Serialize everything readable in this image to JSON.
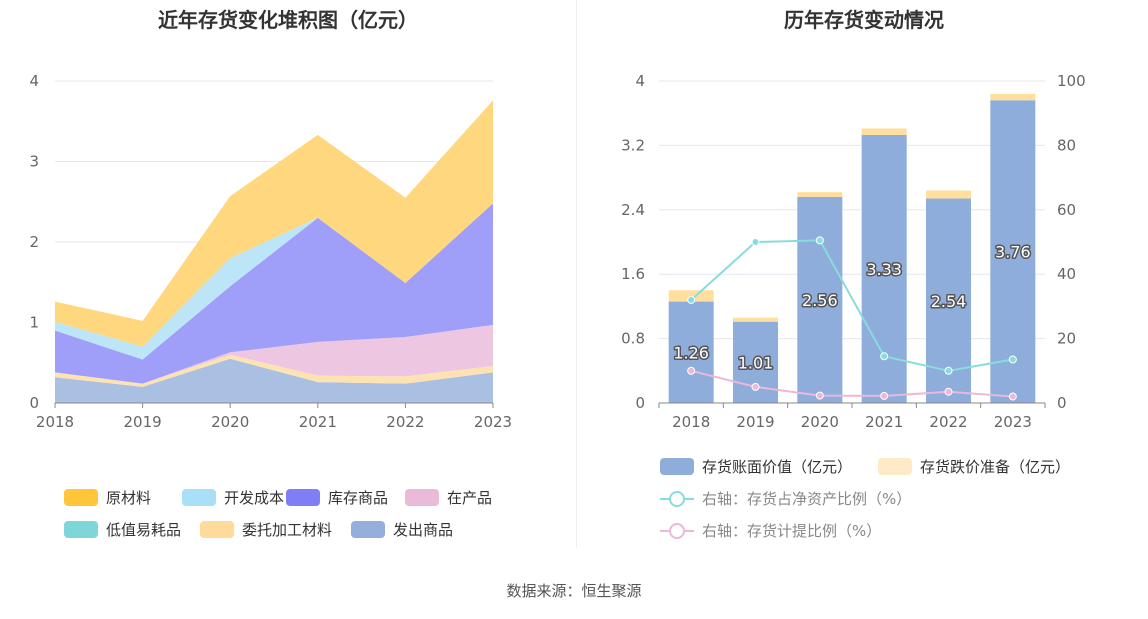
{
  "left_chart": {
    "title": "近年存货变化堆积图（亿元）",
    "legend": [
      {
        "label": "原材料",
        "color": "#FFC63A"
      },
      {
        "label": "开发成本",
        "color": "#A9DFF7"
      },
      {
        "label": "库存商品",
        "color": "#7F7EF5"
      },
      {
        "label": "在产品",
        "color": "#EBBAD9"
      },
      {
        "label": "低值易耗品",
        "color": "#7FD6D9"
      },
      {
        "label": "委托加工材料",
        "color": "#FFDA9A"
      },
      {
        "label": "发出商品",
        "color": "#95AFDD"
      }
    ]
  },
  "right_chart": {
    "title": "历年存货变动情况",
    "legend": [
      {
        "label": "存货账面价值（亿元）",
        "color": "#8EADDB",
        "kind": "bar"
      },
      {
        "label": "存货跌价准备（亿元）",
        "color": "#FFE9C6",
        "kind": "bar"
      },
      {
        "label": "右轴：存货占净资产比例（%）",
        "color": "#88DCDC",
        "kind": "line"
      },
      {
        "label": "右轴：存货计提比例（%）",
        "color": "#EBB8D8",
        "kind": "line"
      }
    ]
  },
  "source": "数据来源：恒生聚源",
  "chart_data": [
    {
      "type": "area",
      "stacked": true,
      "title": "近年存货变化堆积图（亿元）",
      "x": [
        "2018",
        "2019",
        "2020",
        "2021",
        "2022",
        "2023"
      ],
      "ylim": [
        0,
        4
      ],
      "yticks": [
        0,
        1,
        2,
        3,
        4
      ],
      "series": [
        {
          "name": "发出商品",
          "color": "#A9C0E3",
          "values": [
            0.32,
            0.2,
            0.55,
            0.26,
            0.24,
            0.38
          ]
        },
        {
          "name": "委托加工材料",
          "color": "#FFE2B2",
          "values": [
            0.06,
            0.04,
            0.05,
            0.08,
            0.09,
            0.08
          ]
        },
        {
          "name": "低值易耗品",
          "color": "#7FD6D9",
          "values": [
            0.0,
            0.0,
            0.0,
            0.0,
            0.0,
            0.0
          ]
        },
        {
          "name": "在产品",
          "color": "#EDC6E1",
          "values": [
            0.0,
            0.0,
            0.03,
            0.42,
            0.49,
            0.51
          ]
        },
        {
          "name": "库存商品",
          "color": "#9F9EF8",
          "values": [
            0.52,
            0.3,
            0.82,
            1.54,
            0.67,
            1.51
          ]
        },
        {
          "name": "开发成本",
          "color": "#BCE6F8",
          "values": [
            0.11,
            0.16,
            0.35,
            0.0,
            0.0,
            0.0
          ]
        },
        {
          "name": "原材料",
          "color": "#FFD77E",
          "values": [
            0.25,
            0.32,
            0.77,
            1.03,
            1.06,
            1.28
          ]
        }
      ]
    },
    {
      "type": "bar",
      "stacked": true,
      "title": "历年存货变动情况",
      "x": [
        "2018",
        "2019",
        "2020",
        "2021",
        "2022",
        "2023"
      ],
      "ylim": [
        0,
        4
      ],
      "yticks": [
        0,
        0.8,
        1.6,
        2.4,
        3.2,
        4
      ],
      "ylim_right": [
        0,
        100
      ],
      "yticks_right": [
        0,
        20,
        40,
        60,
        80,
        100
      ],
      "bars": [
        {
          "name": "存货账面价值（亿元）",
          "color": "#8EADDB",
          "values": [
            1.26,
            1.01,
            2.56,
            3.33,
            2.54,
            3.76
          ],
          "labels": [
            "1.26",
            "1.01",
            "2.56",
            "3.33",
            "2.54",
            "3.76"
          ]
        },
        {
          "name": "存货跌价准备（亿元）",
          "color": "#FFDE9E",
          "values": [
            0.14,
            0.05,
            0.06,
            0.08,
            0.1,
            0.08
          ]
        }
      ],
      "lines": [
        {
          "name": "右轴：存货占净资产比例（%）",
          "color": "#88DCDC",
          "axis": "right",
          "values": [
            32,
            50,
            50.5,
            14.5,
            10,
            13.5
          ]
        },
        {
          "name": "右轴：存货计提比例（%）",
          "color": "#EBB8D8",
          "axis": "right",
          "values": [
            10,
            5,
            2.3,
            2.2,
            3.5,
            2
          ]
        }
      ]
    }
  ]
}
